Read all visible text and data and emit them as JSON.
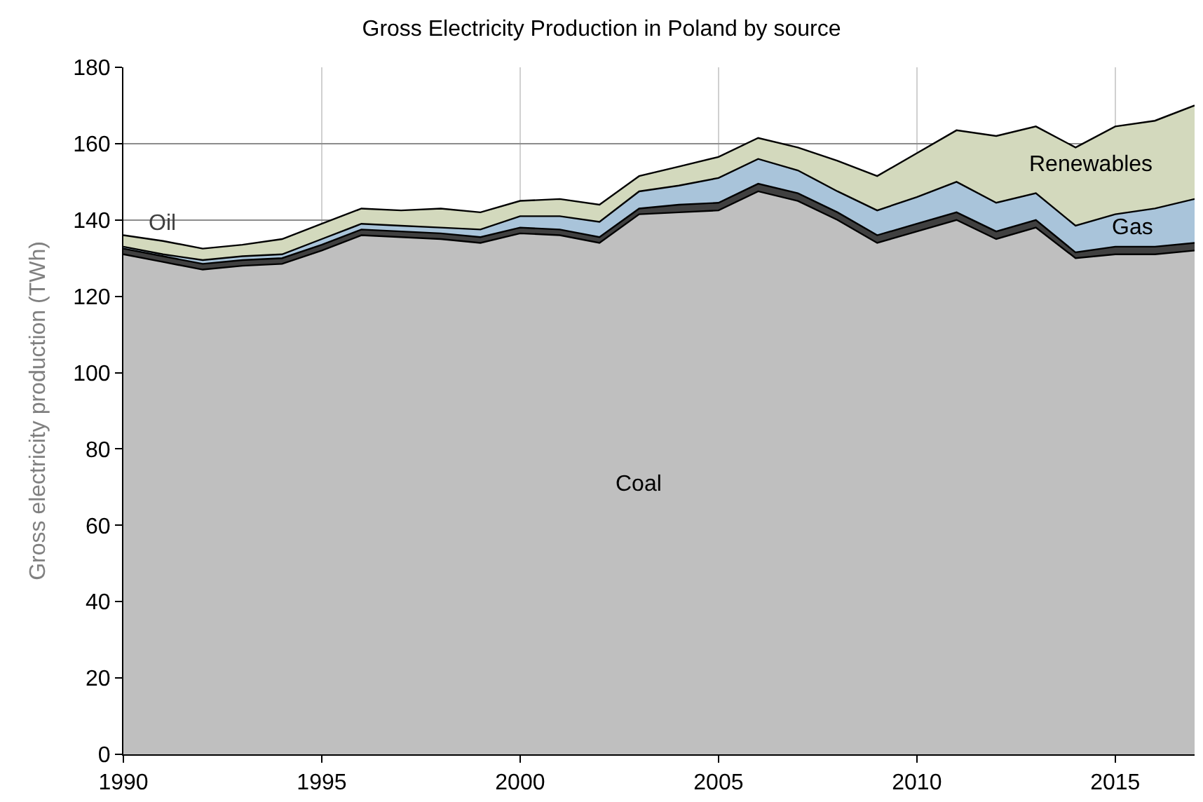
{
  "chart_data": {
    "type": "area",
    "stacked": true,
    "title": "Gross Electricity Production in Poland by source",
    "ylabel": "Gross electricity production (TWh)",
    "x": [
      1990,
      1991,
      1992,
      1993,
      1994,
      1995,
      1996,
      1997,
      1998,
      1999,
      2000,
      2001,
      2002,
      2003,
      2004,
      2005,
      2006,
      2007,
      2008,
      2009,
      2010,
      2011,
      2012,
      2013,
      2014,
      2015,
      2016,
      2017
    ],
    "series": [
      {
        "name": "Coal",
        "color": "#bfbfbf",
        "values": [
          131,
          129,
          127,
          128,
          128.5,
          132,
          136,
          135.5,
          135,
          134,
          136.5,
          136,
          134,
          141.5,
          142,
          142.5,
          147.5,
          145,
          140,
          134,
          137,
          140,
          135,
          138,
          130,
          131,
          131,
          132
        ]
      },
      {
        "name": "Oil",
        "color": "#404040",
        "values": [
          1.5,
          1.5,
          1.5,
          1.5,
          1.5,
          1.5,
          1.5,
          1.5,
          1.5,
          1.5,
          1.5,
          1.5,
          1.5,
          1.5,
          2,
          2,
          2,
          2,
          2,
          2,
          2,
          2,
          2,
          2,
          1.5,
          2,
          2,
          2
        ]
      },
      {
        "name": "Gas",
        "color": "#a9c4da",
        "values": [
          0.5,
          0.5,
          1,
          1,
          1,
          1.5,
          1.5,
          1.5,
          1.5,
          2,
          3,
          3.5,
          4,
          4.5,
          5,
          6.5,
          6.5,
          6,
          5.5,
          6.5,
          7,
          8,
          7.5,
          7,
          7,
          8.5,
          10,
          11.5
        ]
      },
      {
        "name": "Renewables",
        "color": "#d3d9bd",
        "values": [
          3,
          3.5,
          3,
          3,
          4,
          4,
          4,
          4,
          5,
          4.5,
          4,
          4.5,
          4.5,
          4,
          5,
          5.5,
          5.5,
          6,
          8,
          9,
          11.5,
          13.5,
          17.5,
          17.5,
          20.5,
          23,
          23,
          24.5
        ]
      }
    ],
    "xlim": [
      1990,
      2017
    ],
    "xticks": [
      1990,
      1995,
      2000,
      2005,
      2010,
      2015
    ],
    "ylim": [
      0,
      180
    ],
    "yticks": [
      0,
      20,
      40,
      60,
      80,
      100,
      120,
      140,
      160,
      180
    ],
    "grid": true,
    "legend": false
  }
}
